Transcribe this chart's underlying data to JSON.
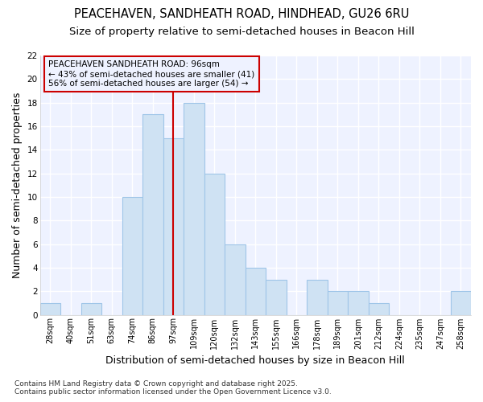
{
  "title1": "PEACEHAVEN, SANDHEATH ROAD, HINDHEAD, GU26 6RU",
  "title2": "Size of property relative to semi-detached houses in Beacon Hill",
  "xlabel": "Distribution of semi-detached houses by size in Beacon Hill",
  "ylabel": "Number of semi-detached properties",
  "categories": [
    "28sqm",
    "40sqm",
    "51sqm",
    "63sqm",
    "74sqm",
    "86sqm",
    "97sqm",
    "109sqm",
    "120sqm",
    "132sqm",
    "143sqm",
    "155sqm",
    "166sqm",
    "178sqm",
    "189sqm",
    "201sqm",
    "212sqm",
    "224sqm",
    "235sqm",
    "247sqm",
    "258sqm"
  ],
  "values": [
    1,
    0,
    1,
    0,
    10,
    17,
    15,
    18,
    12,
    6,
    4,
    3,
    0,
    3,
    2,
    2,
    1,
    0,
    0,
    0,
    2
  ],
  "bar_color": "#cfe2f3",
  "bar_edge_color": "#9fc5e8",
  "highlight_index": 6,
  "highlight_line_color": "#cc0000",
  "annotation_text": "PEACEHAVEN SANDHEATH ROAD: 96sqm\n← 43% of semi-detached houses are smaller (41)\n56% of semi-detached houses are larger (54) →",
  "annotation_box_edge": "#cc0000",
  "footer": "Contains HM Land Registry data © Crown copyright and database right 2025.\nContains public sector information licensed under the Open Government Licence v3.0.",
  "ylim": [
    0,
    22
  ],
  "yticks": [
    0,
    2,
    4,
    6,
    8,
    10,
    12,
    14,
    16,
    18,
    20,
    22
  ],
  "bg_color": "#ffffff",
  "plot_bg_color": "#eef2ff",
  "grid_color": "#ffffff",
  "title_fontsize": 10.5,
  "subtitle_fontsize": 9.5,
  "axis_label_fontsize": 9,
  "tick_fontsize": 7,
  "annotation_fontsize": 7.5,
  "footer_fontsize": 6.5
}
